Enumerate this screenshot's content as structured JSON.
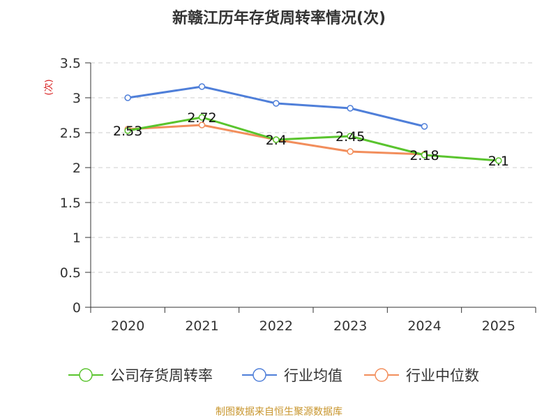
{
  "chart_data": {
    "type": "line",
    "title": "新赣江历年存货周转率情况(次)",
    "ylabel": "(次)",
    "xlabel": "",
    "categories": [
      "2020",
      "2021",
      "2022",
      "2023",
      "2024",
      "2025"
    ],
    "ylim": [
      0,
      3.5
    ],
    "yticks": [
      "0",
      "0.5",
      "1",
      "1.5",
      "2",
      "2.5",
      "3",
      "3.5"
    ],
    "grid": true,
    "legend_position": "bottom",
    "series": [
      {
        "name": "公司存货周转率",
        "color": "#5ac42e",
        "values": [
          2.53,
          2.72,
          2.4,
          2.45,
          2.18,
          2.1
        ],
        "labels": [
          "2.53",
          "2.72",
          "2.4",
          "2.45",
          "2.18",
          "2.1"
        ]
      },
      {
        "name": "行业均值",
        "color": "#4f7fd9",
        "values": [
          3.0,
          3.16,
          2.92,
          2.85,
          2.59,
          null
        ],
        "labels": null
      },
      {
        "name": "行业中位数",
        "color": "#f28e5c",
        "values": [
          2.55,
          2.61,
          2.4,
          2.23,
          2.19,
          null
        ],
        "labels": null
      }
    ]
  },
  "source_text": "制图数据来自恒生聚源数据库",
  "colors": {
    "title": "#333333",
    "axis": "#333333",
    "grid": "#cccccc",
    "ylabel": "#d81e1e",
    "source": "#c8962e"
  }
}
